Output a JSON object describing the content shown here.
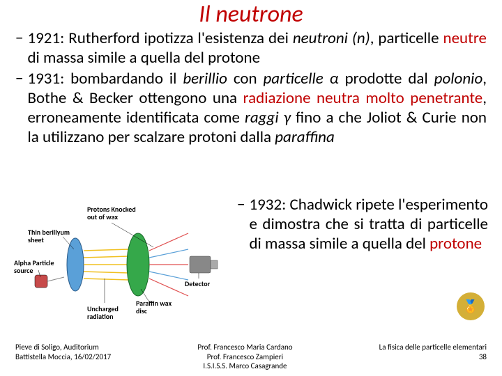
{
  "title": {
    "text": "Il neutrone",
    "color": "#c00000",
    "fontsize": 34
  },
  "body": {
    "fontsize": 23,
    "color_black": "#000000",
    "color_red": "#c00000",
    "bullets": [
      {
        "runs": [
          {
            "t": "1921: Rutherford ipotizza l'esistenza dei ",
            "c": "#000000",
            "i": false
          },
          {
            "t": "neutroni (n)",
            "c": "#000000",
            "i": true
          },
          {
            "t": ", particelle ",
            "c": "#000000",
            "i": false
          },
          {
            "t": "neutre",
            "c": "#c00000",
            "i": false
          },
          {
            "t": " di massa simile a quella del protone",
            "c": "#000000",
            "i": false
          }
        ]
      },
      {
        "runs": [
          {
            "t": "1931: bombardando il ",
            "c": "#000000",
            "i": false
          },
          {
            "t": "berillio",
            "c": "#000000",
            "i": true
          },
          {
            "t": " con ",
            "c": "#000000",
            "i": false
          },
          {
            "t": "particelle α",
            "c": "#000000",
            "i": true
          },
          {
            "t": " prodotte dal ",
            "c": "#000000",
            "i": false
          },
          {
            "t": "polonio",
            "c": "#000000",
            "i": true
          },
          {
            "t": ", Bothe & Becker ottengono una ",
            "c": "#000000",
            "i": false
          },
          {
            "t": "radiazione neutra molto penetrante",
            "c": "#c00000",
            "i": false
          },
          {
            "t": ", erroneamente identificata come ",
            "c": "#000000",
            "i": false
          },
          {
            "t": "raggi γ",
            "c": "#000000",
            "i": true
          },
          {
            "t": " fino a che Joliot & Curie non la utilizzano per scalzare protoni dalla ",
            "c": "#000000",
            "i": false
          },
          {
            "t": "paraffina",
            "c": "#000000",
            "i": true
          }
        ]
      }
    ]
  },
  "right": {
    "fontsize": 23,
    "bullet": {
      "runs": [
        {
          "t": "1932: Chadwick ripete l'esperimento e dimostra che si tratta di particelle di massa simile a quella del ",
          "c": "#000000",
          "i": false
        },
        {
          "t": "protone",
          "c": "#c00000",
          "i": false
        }
      ]
    }
  },
  "diagram": {
    "labels": {
      "protons": "Protons Knocked\nout of wax",
      "beryllium": "Thin berillyum\nsheet",
      "alpha": "Alpha Particle\nsource",
      "uncharged": "Uncharged\nradiation",
      "paraffin": "Paraffin wax\ndisc",
      "detector": "Detector"
    },
    "colors": {
      "source": "#c74a4a",
      "beryllium": "#5aa0d8",
      "paraffin": "#35a84a",
      "detector_body": "#888888",
      "ray_yellow": "#f0c020",
      "ray_red": "#e05050",
      "ray_blue": "#5aa0d8"
    }
  },
  "nobel": {
    "emoji": "🏅",
    "bg": "#d4af37"
  },
  "footer": {
    "left": "Pieve di Soligo, Auditorium\nBattistella Moccia, 16/02/2017",
    "center": "Prof. Francesco Maria Cardano\nProf. Francesco Zampieri\nI.S.I.S.S. Marco Casagrande",
    "right": "La fisica delle particelle elementari\n38"
  }
}
